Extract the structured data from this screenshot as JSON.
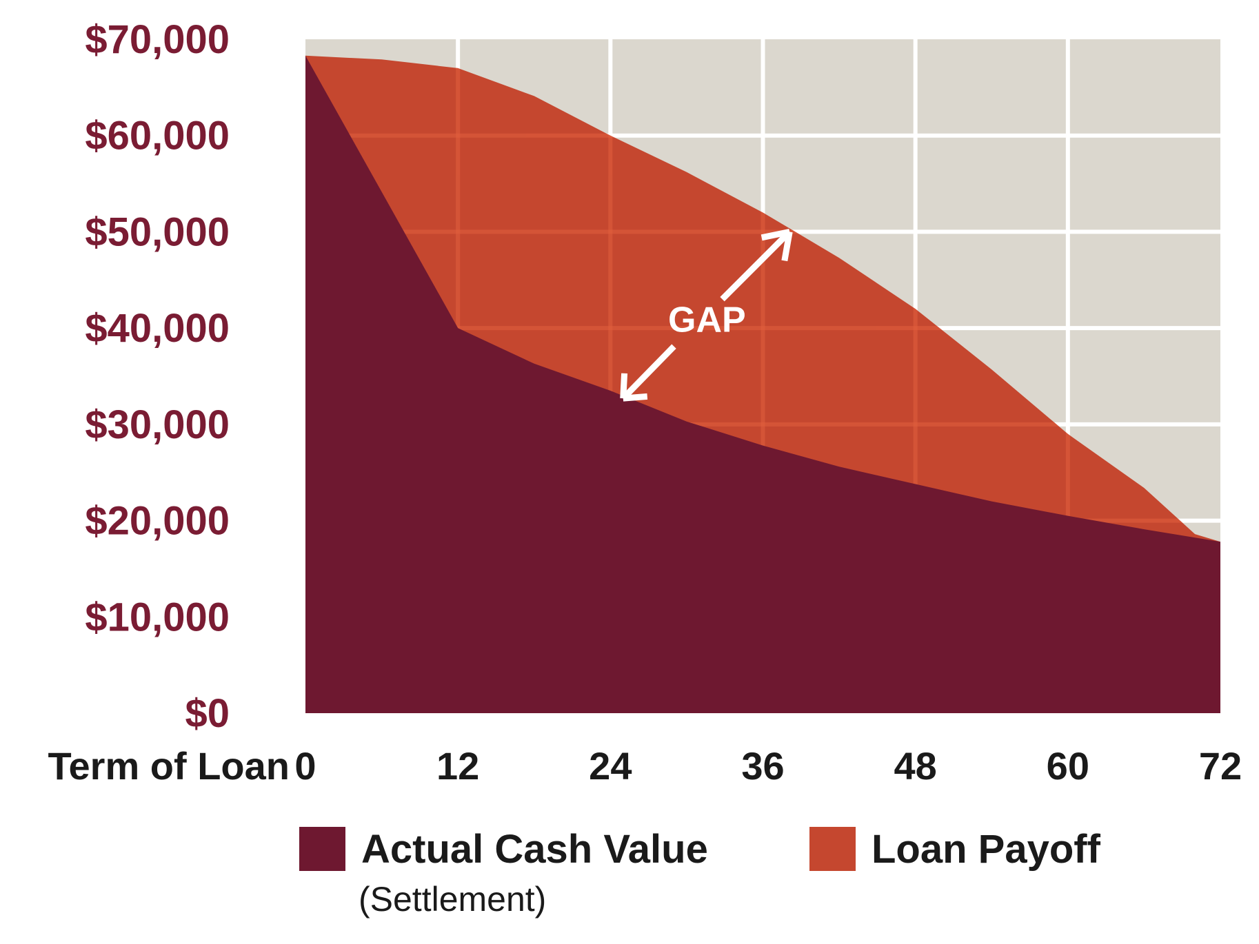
{
  "figure": {
    "background": "#FFFFFF"
  },
  "colors": {
    "plot_bg": "#DBD7CE",
    "grid": "#FFFFFF",
    "grid_over_area": "#E2603E",
    "y_label": "#7A1C33",
    "x_label": "#1A1A1A",
    "arrow": "#FFFFFF",
    "annotation_text": "#FFFFFF"
  },
  "chart_data": {
    "type": "area",
    "title": "",
    "xlabel": "Term of Loan",
    "ylabel": "",
    "x_unit": "months",
    "xlim": [
      0,
      72
    ],
    "ylim": [
      0,
      70000
    ],
    "grid": true,
    "legend_position": "bottom",
    "x_ticks": [
      {
        "value": 0,
        "label": "0"
      },
      {
        "value": 12,
        "label": "12"
      },
      {
        "value": 24,
        "label": "24"
      },
      {
        "value": 36,
        "label": "36"
      },
      {
        "value": 48,
        "label": "48"
      },
      {
        "value": 60,
        "label": "60"
      },
      {
        "value": 72,
        "label": "72"
      }
    ],
    "y_ticks": [
      {
        "value": 70000,
        "label": "$70,000"
      },
      {
        "value": 60000,
        "label": "$60,000"
      },
      {
        "value": 50000,
        "label": "$50,000"
      },
      {
        "value": 40000,
        "label": "$40,000"
      },
      {
        "value": 30000,
        "label": "$30,000"
      },
      {
        "value": 20000,
        "label": "$20,000"
      },
      {
        "value": 10000,
        "label": "$10,000"
      },
      {
        "value": 0,
        "label": "$0"
      }
    ],
    "series": [
      {
        "name": "Loan Payoff",
        "color": "#C5472F",
        "points": [
          [
            0,
            68300
          ],
          [
            6,
            67900
          ],
          [
            12,
            67000
          ],
          [
            18,
            64100
          ],
          [
            24,
            60000
          ],
          [
            30,
            56200
          ],
          [
            36,
            52000
          ],
          [
            42,
            47300
          ],
          [
            48,
            42000
          ],
          [
            54,
            35700
          ],
          [
            60,
            29000
          ],
          [
            66,
            23400
          ],
          [
            70,
            18600
          ],
          [
            72,
            17800
          ]
        ]
      },
      {
        "name": "Actual Cash Value (Settlement)",
        "color": "#6E1830",
        "points": [
          [
            0,
            68300
          ],
          [
            12,
            40000
          ],
          [
            18,
            36300
          ],
          [
            24,
            33500
          ],
          [
            30,
            30300
          ],
          [
            36,
            27800
          ],
          [
            42,
            25600
          ],
          [
            48,
            23800
          ],
          [
            54,
            22000
          ],
          [
            60,
            20500
          ],
          [
            66,
            19100
          ],
          [
            72,
            17800
          ]
        ]
      }
    ],
    "annotation": {
      "label": "GAP",
      "label_pos": [
        31.6,
        40900
      ],
      "arrows": [
        {
          "from": [
            32.8,
            43000
          ],
          "to": [
            38.1,
            50000
          ],
          "wings": [
            [
              35.9,
              49400
            ],
            [
              37.7,
              47000
            ]
          ]
        },
        {
          "from": [
            29.0,
            38100
          ],
          "to": [
            25.0,
            32700
          ],
          "wings": [
            [
              25.1,
              35300
            ],
            [
              26.9,
              32900
            ]
          ]
        }
      ]
    }
  },
  "legend": {
    "items": [
      {
        "label": "Actual Cash Value",
        "sublabel": "(Settlement)",
        "color": "#6E1830"
      },
      {
        "label": "Loan Payoff",
        "sublabel": "",
        "color": "#C5472F"
      }
    ]
  }
}
